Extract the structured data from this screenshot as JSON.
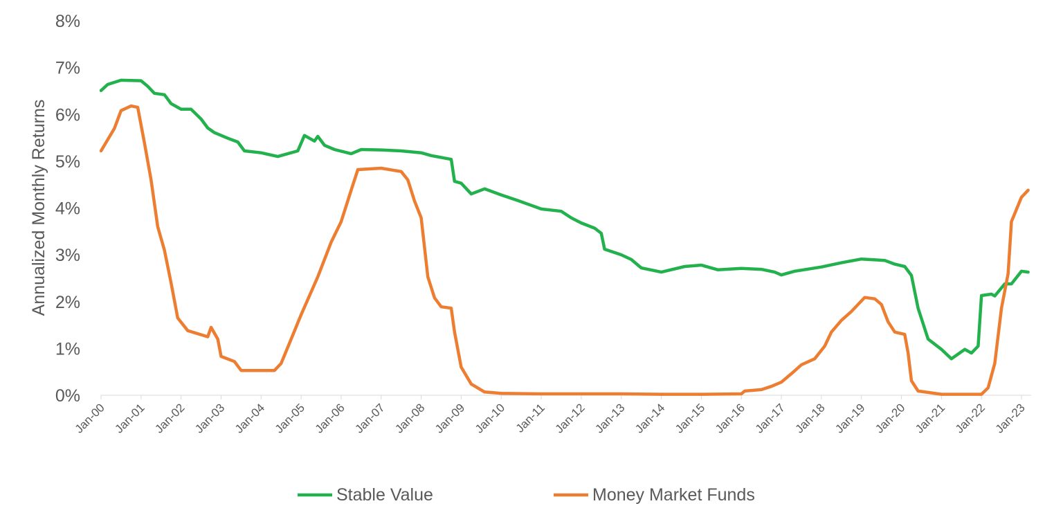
{
  "chart_data": {
    "type": "line",
    "title": "",
    "xlabel": "",
    "ylabel": "Annualized Monthly Returns",
    "ylim": [
      0,
      8
    ],
    "y_unit": "%",
    "y_ticks": [
      "0%",
      "1%",
      "2%",
      "3%",
      "4%",
      "5%",
      "6%",
      "7%",
      "8%"
    ],
    "x_range": [
      "2000-01",
      "2023-03"
    ],
    "x_tick_labels": [
      "Jan-00",
      "Jan-01",
      "Jan-02",
      "Jan-03",
      "Jan-04",
      "Jan-05",
      "Jan-06",
      "Jan-07",
      "Jan-08",
      "Jan-09",
      "Jan-10",
      "Jan-11",
      "Jan-12",
      "Jan-13",
      "Jan-14",
      "Jan-15",
      "Jan-16",
      "Jan-17",
      "Jan-18",
      "Jan-19",
      "Jan-20",
      "Jan-21",
      "Jan-22",
      "Jan-23"
    ],
    "grid": false,
    "legend_placement": "bottom",
    "series": [
      {
        "name": "Stable Value",
        "color": "#22b14c",
        "points": [
          [
            "2000-01",
            6.51
          ],
          [
            "2000-03",
            6.64
          ],
          [
            "2000-07",
            6.73
          ],
          [
            "2001-01",
            6.72
          ],
          [
            "2001-03",
            6.6
          ],
          [
            "2001-05",
            6.45
          ],
          [
            "2001-08",
            6.42
          ],
          [
            "2001-10",
            6.23
          ],
          [
            "2002-01",
            6.11
          ],
          [
            "2002-04",
            6.11
          ],
          [
            "2002-07",
            5.9
          ],
          [
            "2002-09",
            5.71
          ],
          [
            "2002-11",
            5.61
          ],
          [
            "2003-03",
            5.49
          ],
          [
            "2003-06",
            5.41
          ],
          [
            "2003-08",
            5.22
          ],
          [
            "2004-01",
            5.18
          ],
          [
            "2004-06",
            5.1
          ],
          [
            "2004-12",
            5.22
          ],
          [
            "2005-02",
            5.55
          ],
          [
            "2005-05",
            5.43
          ],
          [
            "2005-06",
            5.53
          ],
          [
            "2005-08",
            5.34
          ],
          [
            "2005-11",
            5.25
          ],
          [
            "2006-04",
            5.16
          ],
          [
            "2006-07",
            5.25
          ],
          [
            "2007-01",
            5.24
          ],
          [
            "2007-07",
            5.22
          ],
          [
            "2008-01",
            5.18
          ],
          [
            "2008-04",
            5.12
          ],
          [
            "2008-10",
            5.04
          ],
          [
            "2008-11",
            4.57
          ],
          [
            "2009-01",
            4.53
          ],
          [
            "2009-04",
            4.3
          ],
          [
            "2009-08",
            4.41
          ],
          [
            "2010-01",
            4.28
          ],
          [
            "2010-06",
            4.16
          ],
          [
            "2011-01",
            3.98
          ],
          [
            "2011-07",
            3.93
          ],
          [
            "2011-10",
            3.79
          ],
          [
            "2012-01",
            3.68
          ],
          [
            "2012-05",
            3.57
          ],
          [
            "2012-07",
            3.46
          ],
          [
            "2012-08",
            3.12
          ],
          [
            "2013-01",
            3.0
          ],
          [
            "2013-04",
            2.9
          ],
          [
            "2013-07",
            2.72
          ],
          [
            "2014-01",
            2.63
          ],
          [
            "2014-08",
            2.75
          ],
          [
            "2015-01",
            2.78
          ],
          [
            "2015-06",
            2.68
          ],
          [
            "2016-01",
            2.71
          ],
          [
            "2016-07",
            2.69
          ],
          [
            "2016-11",
            2.63
          ],
          [
            "2017-01",
            2.57
          ],
          [
            "2017-05",
            2.65
          ],
          [
            "2018-01",
            2.74
          ],
          [
            "2018-07",
            2.83
          ],
          [
            "2019-01",
            2.91
          ],
          [
            "2019-08",
            2.88
          ],
          [
            "2019-11",
            2.8
          ],
          [
            "2020-02",
            2.75
          ],
          [
            "2020-04",
            2.56
          ],
          [
            "2020-06",
            1.86
          ],
          [
            "2020-09",
            1.2
          ],
          [
            "2021-01",
            0.98
          ],
          [
            "2021-04",
            0.78
          ],
          [
            "2021-08",
            0.98
          ],
          [
            "2021-10",
            0.9
          ],
          [
            "2021-12",
            1.05
          ],
          [
            "2022-01",
            2.13
          ],
          [
            "2022-04",
            2.16
          ],
          [
            "2022-05",
            2.12
          ],
          [
            "2022-08",
            2.38
          ],
          [
            "2022-10",
            2.38
          ],
          [
            "2023-01",
            2.65
          ],
          [
            "2023-03",
            2.63
          ]
        ]
      },
      {
        "name": "Money Market Funds",
        "color": "#ed7d31",
        "points": [
          [
            "2000-01",
            5.22
          ],
          [
            "2000-05",
            5.7
          ],
          [
            "2000-07",
            6.08
          ],
          [
            "2000-10",
            6.18
          ],
          [
            "2000-12",
            6.15
          ],
          [
            "2001-02",
            5.4
          ],
          [
            "2001-04",
            4.6
          ],
          [
            "2001-06",
            3.6
          ],
          [
            "2001-08",
            3.1
          ],
          [
            "2001-10",
            2.4
          ],
          [
            "2001-12",
            1.65
          ],
          [
            "2002-03",
            1.38
          ],
          [
            "2002-09",
            1.25
          ],
          [
            "2002-10",
            1.45
          ],
          [
            "2002-12",
            1.2
          ],
          [
            "2003-01",
            0.83
          ],
          [
            "2003-05",
            0.72
          ],
          [
            "2003-07",
            0.53
          ],
          [
            "2003-11",
            0.53
          ],
          [
            "2004-05",
            0.53
          ],
          [
            "2004-07",
            0.68
          ],
          [
            "2004-10",
            1.2
          ],
          [
            "2005-01",
            1.72
          ],
          [
            "2005-06",
            2.53
          ],
          [
            "2005-10",
            3.27
          ],
          [
            "2006-01",
            3.71
          ],
          [
            "2006-04",
            4.38
          ],
          [
            "2006-06",
            4.82
          ],
          [
            "2007-01",
            4.85
          ],
          [
            "2007-07",
            4.78
          ],
          [
            "2007-09",
            4.6
          ],
          [
            "2007-11",
            4.15
          ],
          [
            "2008-01",
            3.79
          ],
          [
            "2008-03",
            2.53
          ],
          [
            "2008-05",
            2.08
          ],
          [
            "2008-07",
            1.89
          ],
          [
            "2008-10",
            1.86
          ],
          [
            "2008-11",
            1.35
          ],
          [
            "2009-01",
            0.6
          ],
          [
            "2009-04",
            0.24
          ],
          [
            "2009-08",
            0.07
          ],
          [
            "2010-01",
            0.04
          ],
          [
            "2011-01",
            0.03
          ],
          [
            "2012-01",
            0.03
          ],
          [
            "2013-01",
            0.03
          ],
          [
            "2014-01",
            0.02
          ],
          [
            "2015-01",
            0.02
          ],
          [
            "2016-01",
            0.03
          ],
          [
            "2016-02",
            0.09
          ],
          [
            "2016-07",
            0.12
          ],
          [
            "2016-10",
            0.19
          ],
          [
            "2017-01",
            0.28
          ],
          [
            "2017-04",
            0.46
          ],
          [
            "2017-07",
            0.65
          ],
          [
            "2017-11",
            0.78
          ],
          [
            "2018-02",
            1.05
          ],
          [
            "2018-04",
            1.35
          ],
          [
            "2018-07",
            1.6
          ],
          [
            "2018-10",
            1.79
          ],
          [
            "2019-02",
            2.09
          ],
          [
            "2019-05",
            2.06
          ],
          [
            "2019-07",
            1.94
          ],
          [
            "2019-09",
            1.57
          ],
          [
            "2019-11",
            1.35
          ],
          [
            "2020-02",
            1.3
          ],
          [
            "2020-03",
            0.9
          ],
          [
            "2020-04",
            0.31
          ],
          [
            "2020-06",
            0.09
          ],
          [
            "2021-01",
            0.02
          ],
          [
            "2022-01",
            0.02
          ],
          [
            "2022-03",
            0.16
          ],
          [
            "2022-05",
            0.68
          ],
          [
            "2022-07",
            1.86
          ],
          [
            "2022-09",
            2.6
          ],
          [
            "2022-10",
            3.71
          ],
          [
            "2023-01",
            4.23
          ],
          [
            "2023-03",
            4.38
          ]
        ]
      }
    ]
  }
}
